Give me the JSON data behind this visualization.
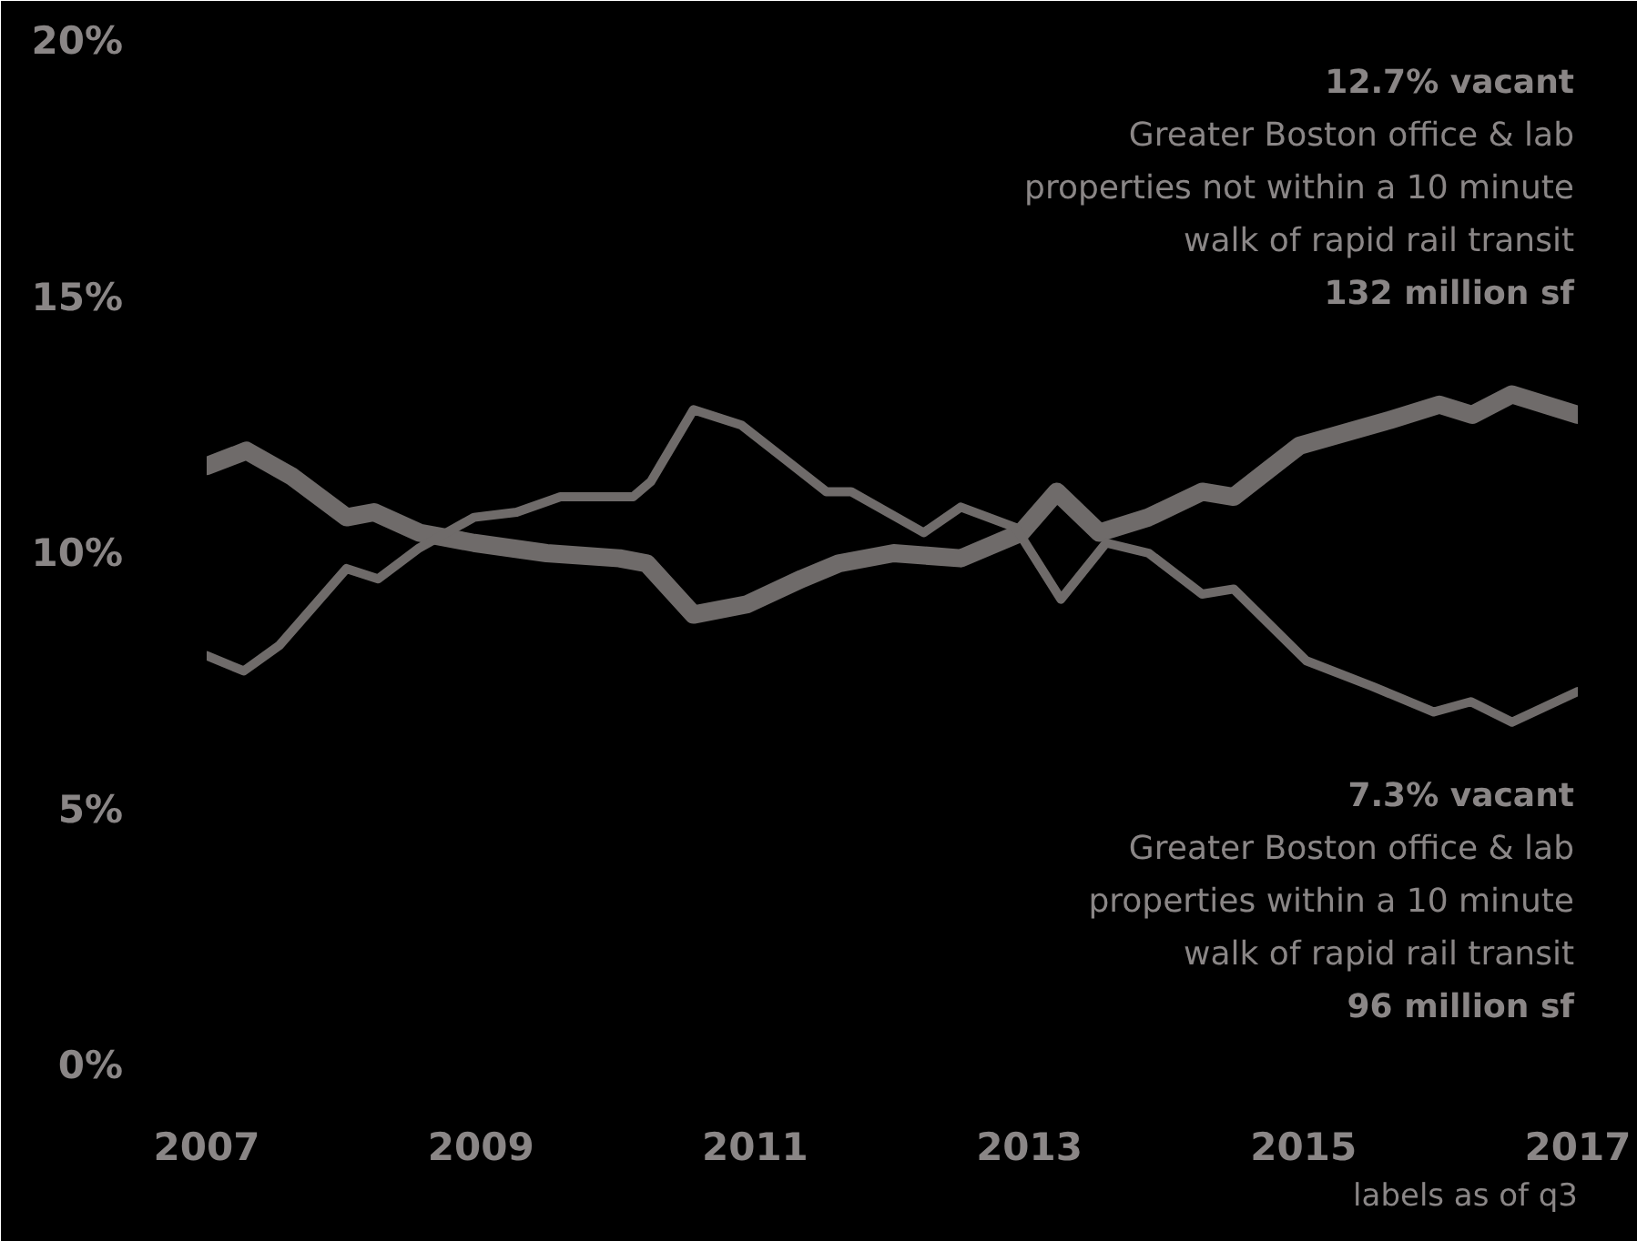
{
  "chart_data": {
    "type": "line",
    "xlim": [
      2007,
      2017
    ],
    "ylim": [
      0,
      20
    ],
    "xticks": [
      2007,
      2009,
      2011,
      2013,
      2015,
      2017
    ],
    "yticks": [
      {
        "value": 0,
        "label": "0%"
      },
      {
        "value": 5,
        "label": "5%"
      },
      {
        "value": 10,
        "label": "10%"
      },
      {
        "value": 15,
        "label": "15%"
      },
      {
        "value": 20,
        "label": "20%"
      }
    ],
    "grid": false,
    "marker": "none",
    "line_style": "solid",
    "series": [
      {
        "color": "#6f6b6a",
        "x": [
          2007.0,
          2007.29,
          2007.62,
          2008.02,
          2008.22,
          2008.55,
          2008.95,
          2009.48,
          2010.01,
          2010.21,
          2010.55,
          2010.94,
          2011.34,
          2011.61,
          2012.01,
          2012.5,
          2012.94,
          2013.2,
          2013.51,
          2013.87,
          2014.26,
          2014.49,
          2014.97,
          2015.63,
          2015.99,
          2016.23,
          2016.52,
          2017.0
        ],
        "values": [
          11.7,
          12.0,
          11.5,
          10.7,
          10.8,
          10.4,
          10.2,
          10.0,
          9.9,
          9.8,
          8.8,
          9.0,
          9.5,
          9.8,
          10.0,
          9.9,
          10.4,
          11.2,
          10.4,
          10.7,
          11.2,
          11.1,
          12.1,
          12.6,
          12.9,
          12.7,
          13.1,
          12.7
        ]
      },
      {
        "color": "#6f6b6a",
        "x": [
          2007.0,
          2007.27,
          2007.53,
          2008.02,
          2008.25,
          2008.55,
          2008.95,
          2009.26,
          2009.58,
          2010.11,
          2010.24,
          2010.55,
          2010.9,
          2011.52,
          2011.7,
          2012.23,
          2012.5,
          2012.9,
          2013.23,
          2013.56,
          2013.87,
          2014.26,
          2014.49,
          2015.02,
          2015.5,
          2015.95,
          2016.22,
          2016.52,
          2017.0
        ],
        "values": [
          8.0,
          7.7,
          8.2,
          9.7,
          9.5,
          10.1,
          10.7,
          10.8,
          11.1,
          11.1,
          11.4,
          12.8,
          12.5,
          11.2,
          11.2,
          10.4,
          10.9,
          10.5,
          9.1,
          10.2,
          10.0,
          9.2,
          9.3,
          7.9,
          7.4,
          6.9,
          7.1,
          6.7,
          7.3
        ]
      }
    ],
    "annotations": [
      "12.7% vacant\nGreater Boston office & lab\nproperties not within a 10 minute\nwalk of rapid rail transit\n132 million sf",
      "7.3% vacant\nGreater Boston office & lab\nproperties within a 10 minute\nwalk of rapid rail transit\n96 million sf",
      "labels as of q3"
    ]
  }
}
